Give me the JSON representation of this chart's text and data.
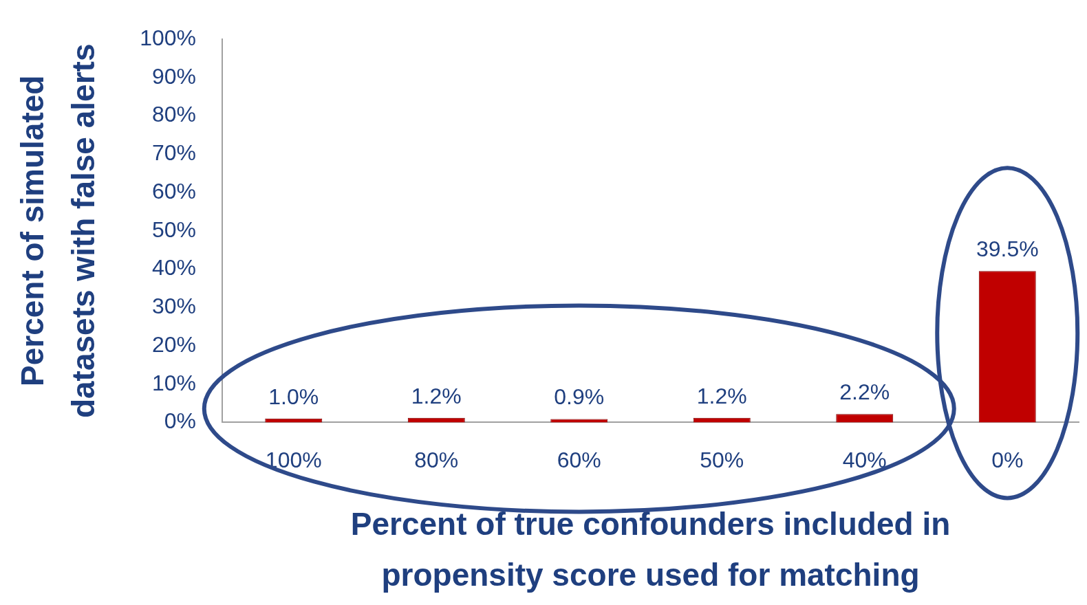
{
  "chart_data": {
    "type": "bar",
    "xlabel": "Percent of true confounders included in propensity score used for matching",
    "ylabel": "Percent of simulated datasets with false alerts",
    "categories": [
      "100%",
      "80%",
      "60%",
      "50%",
      "40%",
      "0%"
    ],
    "values": [
      1.0,
      1.2,
      0.9,
      1.2,
      2.2,
      39.5
    ],
    "value_labels": [
      "1.0%",
      "1.2%",
      "0.9%",
      "1.2%",
      "2.2%",
      "39.5%"
    ],
    "color": "#c00000",
    "ylim": [
      0,
      100
    ],
    "yticks": [
      {
        "value": 0,
        "label": "0%"
      },
      {
        "value": 10,
        "label": "10%"
      },
      {
        "value": 20,
        "label": "20%"
      },
      {
        "value": 30,
        "label": "30%"
      },
      {
        "value": 40,
        "label": "40%"
      },
      {
        "value": 50,
        "label": "50%"
      },
      {
        "value": 60,
        "label": "60%"
      },
      {
        "value": 70,
        "label": "70%"
      },
      {
        "value": 80,
        "label": "80%"
      },
      {
        "value": 90,
        "label": "90%"
      },
      {
        "value": 100,
        "label": "100%"
      }
    ],
    "grid": false,
    "legend": false
  }
}
